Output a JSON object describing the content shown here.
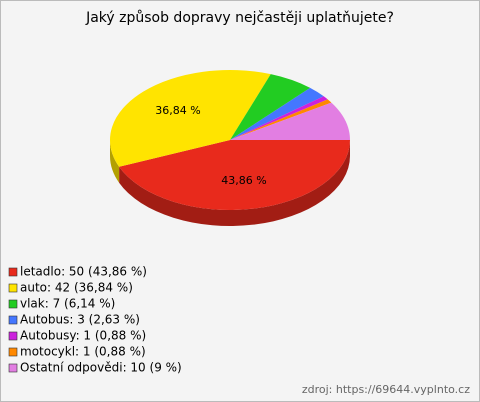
{
  "chart_data": {
    "type": "pie",
    "title": "Jaký způsob dopravy nejčastěji uplatňujete?",
    "categories": [
      "letadlo: 50 (43,86 %)",
      "auto: 42 (36,84 %)",
      "vlak: 7 (6,14 %)",
      "Autobus: 3 (2,63 %)",
      "Autobusy: 1 (0,88 %)",
      "motocykl: 1 (0,88 %)",
      "Ostatní odpovědi: 10 (9 %)"
    ],
    "values": [
      43.86,
      36.84,
      6.14,
      2.63,
      0.88,
      0.88,
      9
    ],
    "value_labels": [
      "43,86 %",
      "36,84 %",
      null,
      null,
      null,
      null,
      null
    ],
    "colors": [
      "#e82a1c",
      "#ffe400",
      "#22cc22",
      "#4477ff",
      "#cc22dd",
      "#ff8800",
      "#e27ee2"
    ],
    "legend": "bottom-left",
    "source": "zdroj: https://69644.vyplnto.cz"
  }
}
